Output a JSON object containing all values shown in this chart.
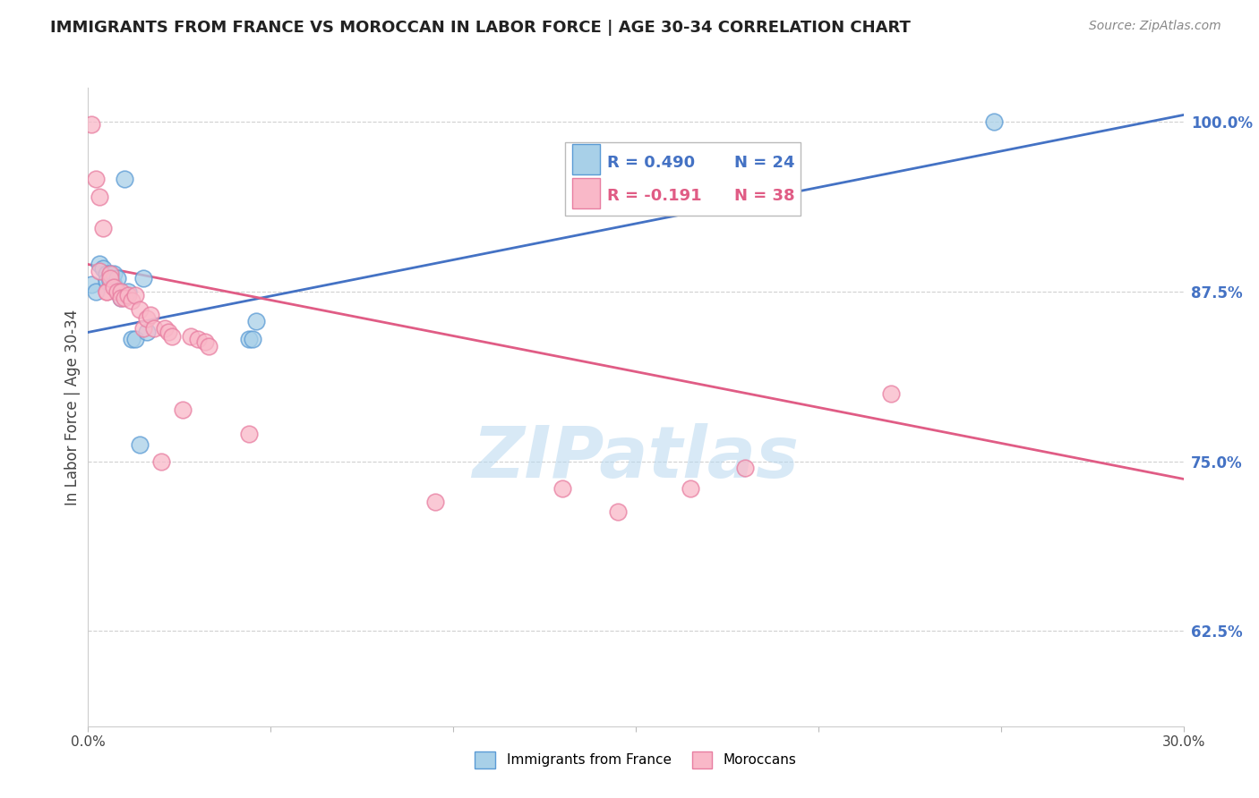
{
  "title": "IMMIGRANTS FROM FRANCE VS MOROCCAN IN LABOR FORCE | AGE 30-34 CORRELATION CHART",
  "source": "Source: ZipAtlas.com",
  "ylabel": "In Labor Force | Age 30-34",
  "yticks": [
    0.625,
    0.75,
    0.875,
    1.0
  ],
  "ytick_labels": [
    "62.5%",
    "75.0%",
    "87.5%",
    "100.0%"
  ],
  "xlim": [
    0.0,
    0.3
  ],
  "ylim": [
    0.555,
    1.025
  ],
  "legend_blue_r": "R = 0.490",
  "legend_blue_n": "N = 24",
  "legend_pink_r": "R = -0.191",
  "legend_pink_n": "N = 38",
  "blue_scatter_x": [
    0.001,
    0.002,
    0.003,
    0.004,
    0.005,
    0.005,
    0.006,
    0.006,
    0.007,
    0.007,
    0.008,
    0.008,
    0.009,
    0.01,
    0.011,
    0.012,
    0.013,
    0.014,
    0.015,
    0.016,
    0.044,
    0.045,
    0.046,
    0.248
  ],
  "blue_scatter_y": [
    0.88,
    0.875,
    0.895,
    0.892,
    0.888,
    0.883,
    0.888,
    0.883,
    0.88,
    0.888,
    0.885,
    0.875,
    0.87,
    0.958,
    0.875,
    0.84,
    0.84,
    0.762,
    0.885,
    0.845,
    0.84,
    0.84,
    0.853,
    1.0
  ],
  "pink_scatter_x": [
    0.001,
    0.002,
    0.003,
    0.003,
    0.004,
    0.005,
    0.005,
    0.006,
    0.006,
    0.007,
    0.008,
    0.009,
    0.009,
    0.01,
    0.011,
    0.012,
    0.013,
    0.014,
    0.015,
    0.016,
    0.017,
    0.018,
    0.02,
    0.021,
    0.022,
    0.023,
    0.026,
    0.028,
    0.03,
    0.032,
    0.033,
    0.044,
    0.095,
    0.13,
    0.145,
    0.165,
    0.18,
    0.22
  ],
  "pink_scatter_y": [
    0.998,
    0.958,
    0.945,
    0.89,
    0.922,
    0.875,
    0.875,
    0.888,
    0.885,
    0.878,
    0.875,
    0.875,
    0.87,
    0.87,
    0.872,
    0.868,
    0.872,
    0.862,
    0.848,
    0.855,
    0.858,
    0.848,
    0.75,
    0.848,
    0.845,
    0.842,
    0.788,
    0.842,
    0.84,
    0.838,
    0.835,
    0.77,
    0.72,
    0.73,
    0.713,
    0.73,
    0.745,
    0.8
  ],
  "blue_line_x": [
    0.0,
    0.3
  ],
  "blue_line_y": [
    0.845,
    1.005
  ],
  "pink_line_x": [
    0.0,
    0.3
  ],
  "pink_line_y": [
    0.895,
    0.737
  ],
  "blue_color": "#a8d0e8",
  "pink_color": "#f9b8c8",
  "blue_edge_color": "#5b9bd5",
  "pink_edge_color": "#e87ea1",
  "blue_line_color": "#4472C4",
  "pink_line_color": "#e05c85",
  "watermark_color": "#b8d8f0",
  "grid_color": "#d0d0d0",
  "right_axis_color": "#4472C4",
  "background_color": "#ffffff"
}
